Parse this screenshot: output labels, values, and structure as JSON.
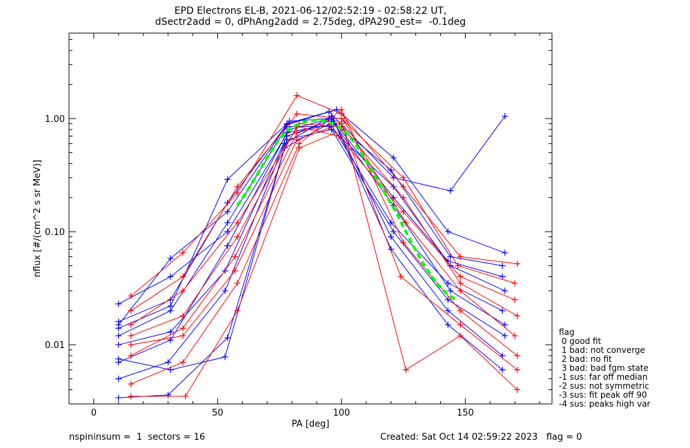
{
  "title": {
    "line1": "EPD Electrons EL-B, 2021-06-12/02:52:19 - 02:58:22 UT,",
    "line2": "dSectr2add = 0, dPhAng2add = 2.75deg, dPA290_est=  -0.1deg"
  },
  "footer": {
    "left": "nspininsum =  1  sectors = 16",
    "right": "Created: Sat Oct 14 02:59:22 2023   flag = 0"
  },
  "legend": {
    "title": "flag",
    "items": [
      " 0 good fit",
      " 1 bad: not converge",
      " 2 bad: no fit",
      " 3 bad: bad fgm state",
      "-1 sus: far off median",
      "-2 sus: not symmetric",
      "-3 sus: fit peak off 90",
      "-4 sus: peaks high var"
    ]
  },
  "colors": {
    "series_a": "#0000ff",
    "series_b": "#ff0000",
    "fit_curve": "#00ff00",
    "axes": "#000000",
    "background": "#ffffff"
  },
  "chart_data": {
    "type": "line",
    "xlabel": "PA [deg]",
    "ylabel": "nflux [#/(cm^2 s sr MeV)]",
    "xlim": [
      -10,
      185
    ],
    "ylim": [
      0.003,
      5.7
    ],
    "y_scale": "log",
    "x_ticks": [
      0,
      50,
      100,
      150
    ],
    "y_ticks": [
      0.01,
      0.1,
      1.0
    ],
    "y_tick_labels": [
      "0.01",
      "0.10",
      "1.00"
    ],
    "grid": false,
    "fit_curve": {
      "x": [
        58,
        62,
        66,
        70,
        74,
        78,
        82,
        86,
        90,
        94,
        98,
        102,
        106,
        110,
        114,
        118,
        122,
        126,
        130,
        134,
        138,
        142,
        146
      ],
      "y": [
        0.17,
        0.23,
        0.32,
        0.45,
        0.62,
        0.78,
        0.88,
        0.95,
        0.97,
        0.95,
        0.88,
        0.75,
        0.58,
        0.42,
        0.3,
        0.21,
        0.15,
        0.1,
        0.068,
        0.048,
        0.036,
        0.029,
        0.025
      ]
    },
    "series": [
      {
        "name": "",
        "color": "#0000ff",
        "lines": [
          {
            "x": [
              10,
              31,
              54,
              78,
              95,
              121,
              144,
              166
            ],
            "y": [
              0.014,
              0.022,
              0.29,
              0.9,
              1.15,
              0.3,
              0.23,
              1.05
            ]
          },
          {
            "x": [
              10,
              31,
              54,
              78,
              98,
              121,
              143,
              166
            ],
            "y": [
              0.015,
              0.058,
              0.15,
              0.88,
              1.2,
              0.45,
              0.1,
              0.065
            ]
          },
          {
            "x": [
              10,
              31,
              54,
              79,
              96,
              121,
              143,
              165
            ],
            "y": [
              0.023,
              0.04,
              0.1,
              0.8,
              1.0,
              0.2,
              0.055,
              0.04
            ]
          },
          {
            "x": [
              10,
              31,
              53,
              78,
              95,
              120,
              143,
              165
            ],
            "y": [
              0.01,
              0.013,
              0.045,
              0.7,
              0.95,
              0.12,
              0.035,
              0.02
            ]
          },
          {
            "x": [
              10,
              31,
              54,
              78,
              97,
              121,
              144,
              166
            ],
            "y": [
              0.007,
              0.011,
              0.075,
              0.75,
              0.9,
              0.17,
              0.03,
              0.015
            ]
          },
          {
            "x": [
              10,
              30,
              53,
              77,
              96,
              120,
              143,
              165
            ],
            "y": [
              0.005,
              0.007,
              0.03,
              0.6,
              1.05,
              0.09,
              0.02,
              0.008
            ]
          },
          {
            "x": [
              10,
              31,
              54,
              78,
              95,
              121,
              144,
              166
            ],
            "y": [
              0.012,
              0.02,
              0.12,
              0.85,
              0.85,
              0.25,
              0.05,
              0.03
            ]
          },
          {
            "x": [
              10,
              31,
              53,
              77,
              97,
              120,
              143,
              165
            ],
            "y": [
              0.0075,
              0.006,
              0.0078,
              0.55,
              0.95,
              0.07,
              0.015,
              0.006
            ]
          },
          {
            "x": [
              10,
              30,
              54,
              78,
              96,
              121,
              143,
              166
            ],
            "y": [
              0.0034,
              0.0036,
              0.0115,
              0.65,
              0.8,
              0.1,
              0.025,
              0.012
            ]
          },
          {
            "x": [
              10,
              31,
              54,
              79,
              95,
              120,
              144,
              165
            ],
            "y": [
              0.016,
              0.025,
              0.18,
              0.95,
              1.0,
              0.35,
              0.06,
              0.05
            ]
          }
        ]
      },
      {
        "name": "",
        "color": "#ff0000",
        "lines": [
          {
            "x": [
              15,
              36,
              58,
              82,
              100,
              125,
              148,
              171
            ],
            "y": [
              0.027,
              0.065,
              0.22,
              1.6,
              1.1,
              0.25,
              0.06,
              0.052
            ]
          },
          {
            "x": [
              15,
              36,
              58,
              83,
              100,
              125,
              148,
              171
            ],
            "y": [
              0.015,
              0.03,
              0.12,
              0.9,
              0.85,
              0.2,
              0.035,
              0.018
            ]
          },
          {
            "x": [
              15,
              36,
              57,
              82,
              101,
              126,
              148,
              170
            ],
            "y": [
              0.008,
              0.014,
              0.06,
              0.75,
              0.95,
              0.12,
              0.03,
              0.012
            ]
          },
          {
            "x": [
              15,
              36,
              58,
              83,
              100,
              125,
              148,
              171
            ],
            "y": [
              0.0045,
              0.007,
              0.035,
              0.6,
              1.2,
              0.08,
              0.02,
              0.008
            ]
          },
          {
            "x": [
              15,
              36,
              58,
              82,
              99,
              125,
              148,
              170
            ],
            "y": [
              0.012,
              0.018,
              0.09,
              0.85,
              0.7,
              0.15,
              0.04,
              0.025
            ]
          },
          {
            "x": [
              15,
              37,
              58,
              83,
              101,
              126,
              148,
              171
            ],
            "y": [
              0.0035,
              0.0035,
              0.02,
              0.55,
              0.8,
              0.006,
              0.012,
              0.004
            ]
          },
          {
            "x": [
              15,
              36,
              58,
              82,
              100,
              125,
              147,
              170
            ],
            "y": [
              0.02,
              0.04,
              0.25,
              1.1,
              1.0,
              0.3,
              0.05,
              0.035
            ]
          },
          {
            "x": [
              15,
              36,
              57,
              82,
              100,
              124,
              148,
              171
            ],
            "y": [
              0.01,
              0.012,
              0.045,
              0.65,
              0.9,
              0.04,
              0.015,
              0.006
            ]
          }
        ]
      }
    ]
  }
}
